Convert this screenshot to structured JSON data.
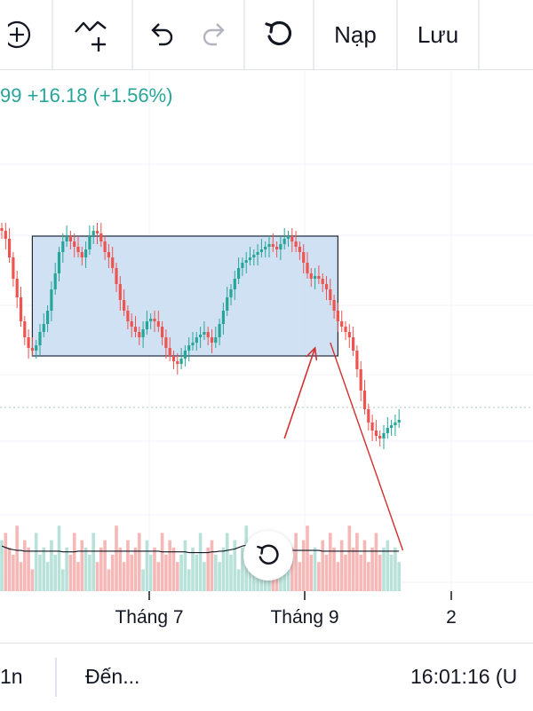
{
  "toolbar": {
    "icons": [
      "add-circle-icon",
      "compare-icon",
      "undo-icon",
      "redo-icon",
      "reset-icon"
    ],
    "load_label": "Nạp",
    "save_label": "Lưu"
  },
  "price_change": {
    "text": "99  +16.18 (+1.56%)",
    "color": "#26a69a"
  },
  "x_axis": {
    "labels": [
      "Tháng 7",
      "Tháng 9",
      "2"
    ]
  },
  "reset_button": {
    "icon": "reset-icon"
  },
  "bottom_bar": {
    "interval": "1n",
    "goto_label": "Đến...",
    "time": "16:01:16 (U"
  },
  "colors": {
    "up": "#26a69a",
    "down": "#ef5350",
    "rectangle_fill": "#c8dcf1",
    "rectangle_border": "#1e2a3a",
    "trend_line": "#d32f2f"
  },
  "chart_data": {
    "type": "candlestick",
    "x_labels": [
      "Tháng 7",
      "Tháng 9",
      "2"
    ],
    "trend": [
      80,
      77,
      70,
      62,
      55,
      46,
      40,
      36,
      35,
      37,
      42,
      45,
      50,
      58,
      64,
      72,
      76,
      78,
      76,
      74,
      72,
      70,
      73,
      78,
      80,
      79,
      76,
      72,
      70,
      66,
      60,
      54,
      50,
      46,
      44,
      42,
      40,
      43,
      46,
      47,
      46,
      44,
      40,
      36,
      33,
      31,
      30,
      32,
      35,
      37,
      38,
      40,
      41,
      42,
      40,
      38,
      40,
      45,
      50,
      55,
      58,
      62,
      66,
      68,
      69,
      70,
      71,
      72,
      73,
      74,
      75,
      74,
      73,
      75,
      77,
      78,
      76,
      74,
      72,
      68,
      64,
      62,
      63,
      62,
      60,
      58,
      54,
      50,
      46,
      44,
      42,
      40,
      35,
      28,
      20,
      13,
      8,
      5,
      3,
      2,
      4,
      6,
      7,
      8,
      9
    ],
    "volume": [
      0.7,
      0.8,
      0.6,
      0.5,
      0.9,
      0.4,
      0.7,
      0.6,
      0.3,
      0.8,
      0.5,
      0.6,
      0.4,
      0.7,
      0.5,
      0.9,
      0.3,
      0.6,
      0.5,
      0.8,
      0.4,
      0.7,
      0.6,
      0.5,
      0.8,
      0.4,
      0.6,
      0.7,
      0.3,
      0.5,
      0.9,
      0.6,
      0.4,
      0.7,
      0.5,
      0.6,
      0.8,
      0.3,
      0.7,
      0.5,
      0.6,
      0.4,
      0.8,
      0.5,
      0.7,
      0.6,
      0.4,
      0.5,
      0.7,
      0.3,
      0.6,
      0.5,
      0.8,
      0.4,
      0.6,
      0.7,
      0.5,
      0.4,
      0.6,
      0.8,
      0.5,
      0.7,
      0.3,
      0.6,
      0.9,
      0.5,
      0.4,
      0.7,
      0.6,
      0.5,
      0.8,
      0.4,
      0.6,
      0.7,
      0.5,
      0.3,
      0.6,
      0.8,
      0.4,
      0.7,
      0.9,
      0.5,
      0.6,
      0.4,
      0.7,
      0.5,
      0.8,
      0.6,
      0.4,
      0.7,
      0.5,
      0.9,
      0.6,
      0.8,
      0.5,
      0.7,
      0.4,
      0.6,
      0.8,
      0.5,
      0.6,
      0.7,
      0.5,
      0.6,
      0.4
    ],
    "volume_ma": [
      0.62,
      0.6,
      0.58,
      0.57,
      0.56,
      0.56,
      0.55,
      0.55,
      0.55,
      0.55,
      0.55,
      0.55,
      0.55,
      0.55,
      0.55,
      0.55,
      0.54,
      0.54,
      0.54,
      0.54,
      0.55,
      0.55,
      0.55,
      0.55,
      0.55,
      0.55,
      0.55,
      0.55,
      0.55,
      0.55,
      0.55,
      0.55,
      0.55,
      0.55,
      0.55,
      0.55,
      0.55,
      0.55,
      0.55,
      0.55,
      0.55,
      0.55,
      0.54,
      0.54,
      0.54,
      0.54,
      0.54,
      0.54,
      0.54,
      0.53,
      0.53,
      0.53,
      0.53,
      0.53,
      0.53,
      0.54,
      0.54,
      0.55,
      0.55,
      0.56,
      0.57,
      0.58,
      0.6,
      0.62,
      0.63,
      0.62,
      0.6,
      0.59,
      0.58,
      0.57,
      0.57,
      0.57,
      0.57,
      0.57,
      0.57,
      0.56,
      0.56,
      0.56,
      0.56,
      0.56,
      0.56,
      0.56,
      0.56,
      0.56,
      0.55,
      0.55,
      0.55,
      0.55,
      0.55,
      0.55,
      0.55,
      0.55,
      0.55,
      0.55,
      0.55,
      0.55,
      0.55,
      0.55,
      0.55,
      0.55,
      0.55,
      0.55,
      0.55,
      0.55,
      0.55
    ],
    "rectangle": {
      "start_bar": 8,
      "end_bar": 88,
      "top": 78,
      "bottom": 33
    },
    "arrow": {
      "from_bar": 74,
      "from_value": 2,
      "to_bar": 82,
      "to_value": 36
    },
    "trend_line": {
      "from_bar": 86,
      "from_value": 38,
      "to_bar": 105,
      "to_value": -40
    }
  }
}
